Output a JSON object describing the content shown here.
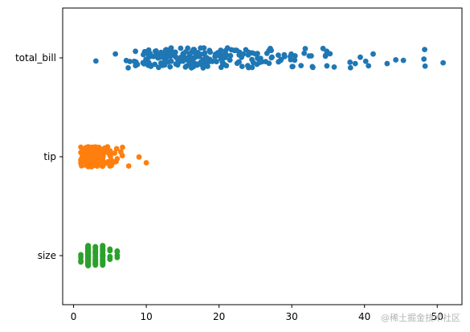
{
  "chart_data": {
    "type": "scatter",
    "kind": "strip",
    "orientation": "horizontal",
    "title": "",
    "xlabel": "",
    "ylabel": "",
    "xlim": [
      -1.5,
      53.4
    ],
    "x_ticks": [
      0,
      10,
      20,
      30,
      40,
      50
    ],
    "grid": false,
    "legend": "none",
    "categories": [
      "total_bill",
      "tip",
      "size"
    ],
    "series": [
      {
        "category": "total_bill",
        "color": "#1f77b4",
        "values": [
          3.07,
          5.75,
          7.25,
          7.51,
          7.74,
          8.35,
          8.51,
          8.52,
          8.58,
          8.77,
          9.55,
          9.6,
          9.68,
          9.78,
          9.94,
          10.07,
          10.07,
          10.09,
          10.27,
          10.29,
          10.33,
          10.33,
          10.34,
          10.34,
          10.51,
          10.59,
          10.63,
          10.65,
          10.77,
          11.02,
          11.17,
          11.24,
          11.35,
          11.38,
          11.59,
          11.61,
          11.69,
          11.87,
          12.02,
          12.03,
          12.16,
          12.26,
          12.43,
          12.46,
          12.48,
          12.54,
          12.6,
          12.66,
          12.69,
          12.74,
          12.76,
          12.9,
          13.0,
          13.0,
          13.03,
          13.13,
          13.16,
          13.27,
          13.28,
          13.37,
          13.39,
          13.42,
          13.42,
          13.42,
          13.51,
          13.81,
          13.94,
          14.0,
          14.07,
          14.15,
          14.26,
          14.31,
          14.48,
          14.52,
          14.73,
          14.78,
          14.83,
          15.01,
          15.04,
          15.06,
          15.36,
          15.38,
          15.42,
          15.48,
          15.53,
          15.69,
          15.69,
          15.77,
          15.81,
          15.95,
          15.98,
          15.98,
          16.0,
          16.04,
          16.21,
          16.27,
          16.29,
          16.31,
          16.32,
          16.4,
          16.43,
          16.45,
          16.47,
          16.49,
          16.58,
          16.66,
          16.82,
          16.93,
          16.97,
          16.99,
          17.07,
          17.26,
          17.29,
          17.31,
          17.46,
          17.47,
          17.51,
          17.59,
          17.78,
          17.81,
          17.82,
          17.89,
          17.92,
          17.92,
          18.04,
          18.15,
          18.24,
          18.26,
          18.28,
          18.29,
          18.35,
          18.43,
          18.64,
          18.69,
          18.71,
          18.78,
          19.08,
          19.44,
          19.49,
          19.65,
          19.77,
          19.81,
          19.82,
          20.08,
          20.23,
          20.27,
          20.29,
          20.45,
          20.49,
          20.53,
          20.65,
          20.69,
          20.76,
          20.9,
          20.92,
          21.01,
          21.01,
          21.16,
          21.5,
          21.58,
          21.7,
          22.12,
          22.23,
          22.42,
          22.49,
          22.67,
          22.75,
          22.76,
          22.82,
          23.1,
          23.17,
          23.33,
          23.68,
          23.95,
          24.01,
          24.06,
          24.08,
          24.27,
          24.52,
          24.55,
          24.59,
          24.71,
          25.0,
          25.21,
          25.28,
          25.29,
          25.56,
          25.71,
          25.89,
          26.41,
          26.59,
          26.86,
          26.88,
          27.05,
          27.18,
          27.2,
          27.28,
          28.15,
          28.17,
          28.44,
          28.55,
          28.97,
          29.03,
          29.8,
          29.85,
          29.93,
          30.06,
          30.14,
          30.4,
          30.46,
          31.27,
          31.71,
          31.85,
          32.4,
          32.68,
          32.83,
          32.9,
          34.3,
          34.63,
          34.65,
          34.81,
          34.83,
          35.26,
          35.83,
          38.01,
          38.07,
          38.73,
          39.42,
          40.17,
          40.55,
          41.19,
          43.11,
          44.3,
          45.35,
          48.17,
          48.27,
          48.33,
          50.81
        ]
      },
      {
        "category": "tip",
        "color": "#ff7f0e",
        "values": [
          1.0,
          1.0,
          1.0,
          1.0,
          1.01,
          1.1,
          1.17,
          1.25,
          1.25,
          1.25,
          1.32,
          1.36,
          1.44,
          1.45,
          1.47,
          1.48,
          1.5,
          1.5,
          1.5,
          1.5,
          1.5,
          1.5,
          1.5,
          1.5,
          1.56,
          1.57,
          1.58,
          1.61,
          1.63,
          1.64,
          1.66,
          1.66,
          1.67,
          1.68,
          1.71,
          1.73,
          1.75,
          1.76,
          1.8,
          1.83,
          1.92,
          1.96,
          1.97,
          1.98,
          1.99,
          2.0,
          2.0,
          2.0,
          2.0,
          2.0,
          2.0,
          2.0,
          2.0,
          2.0,
          2.0,
          2.0,
          2.0,
          2.0,
          2.0,
          2.0,
          2.0,
          2.0,
          2.0,
          2.0,
          2.0,
          2.0,
          2.0,
          2.0,
          2.0,
          2.0,
          2.0,
          2.0,
          2.0,
          2.0,
          2.0,
          2.0,
          2.0,
          2.0,
          2.0,
          2.0,
          2.0,
          2.01,
          2.02,
          2.03,
          2.05,
          2.09,
          2.1,
          2.12,
          2.18,
          2.2,
          2.2,
          2.23,
          2.23,
          2.24,
          2.24,
          2.3,
          2.31,
          2.34,
          2.45,
          2.47,
          2.5,
          2.5,
          2.5,
          2.5,
          2.5,
          2.5,
          2.5,
          2.52,
          2.54,
          2.55,
          2.56,
          2.6,
          2.6,
          2.61,
          2.64,
          2.71,
          2.72,
          2.74,
          2.75,
          2.83,
          2.88,
          2.92,
          3.0,
          3.0,
          3.0,
          3.0,
          3.0,
          3.0,
          3.0,
          3.0,
          3.0,
          3.0,
          3.0,
          3.0,
          3.0,
          3.0,
          3.0,
          3.0,
          3.0,
          3.0,
          3.0,
          3.0,
          3.0,
          3.0,
          3.0,
          3.0,
          3.0,
          3.0,
          3.0,
          3.0,
          3.0,
          3.0,
          3.0,
          3.0,
          3.0,
          3.0,
          3.02,
          3.06,
          3.07,
          3.08,
          3.09,
          3.11,
          3.12,
          3.14,
          3.15,
          3.16,
          3.18,
          3.18,
          3.21,
          3.23,
          3.25,
          3.27,
          3.31,
          3.35,
          3.39,
          3.39,
          3.4,
          3.41,
          3.48,
          3.48,
          3.5,
          3.5,
          3.5,
          3.5,
          3.5,
          3.5,
          3.5,
          3.51,
          3.55,
          3.6,
          3.61,
          3.68,
          3.71,
          3.76,
          3.92,
          4.0,
          4.0,
          4.0,
          4.0,
          4.0,
          4.0,
          4.0,
          4.0,
          4.0,
          4.0,
          4.0,
          4.0,
          4.06,
          4.08,
          4.19,
          4.2,
          4.29,
          4.3,
          4.34,
          4.5,
          4.67,
          4.71,
          4.73,
          5.0,
          5.0,
          5.0,
          5.0,
          5.0,
          5.0,
          5.0,
          5.0,
          5.0,
          5.07,
          5.14,
          5.16,
          5.17,
          5.2,
          5.6,
          5.65,
          5.85,
          5.92,
          6.0,
          6.5,
          6.7,
          6.73,
          7.58,
          9.0,
          10.0
        ]
      },
      {
        "category": "size",
        "color": "#2ca02c",
        "values": [
          1,
          1,
          1,
          1,
          2,
          2,
          2,
          2,
          2,
          2,
          2,
          2,
          2,
          2,
          2,
          2,
          2,
          2,
          2,
          2,
          2,
          2,
          2,
          2,
          2,
          2,
          2,
          2,
          2,
          2,
          2,
          2,
          2,
          2,
          2,
          2,
          2,
          2,
          2,
          2,
          2,
          2,
          2,
          2,
          2,
          2,
          2,
          2,
          2,
          2,
          2,
          2,
          2,
          2,
          2,
          2,
          2,
          2,
          2,
          2,
          2,
          2,
          2,
          2,
          2,
          2,
          2,
          2,
          2,
          2,
          2,
          2,
          2,
          2,
          2,
          2,
          2,
          2,
          2,
          2,
          2,
          2,
          2,
          2,
          2,
          2,
          2,
          2,
          2,
          2,
          2,
          2,
          2,
          2,
          2,
          2,
          2,
          2,
          2,
          2,
          2,
          2,
          2,
          2,
          2,
          2,
          2,
          2,
          2,
          2,
          2,
          2,
          2,
          2,
          2,
          2,
          2,
          2,
          2,
          2,
          2,
          2,
          2,
          2,
          2,
          2,
          2,
          2,
          2,
          2,
          2,
          2,
          2,
          2,
          2,
          2,
          2,
          2,
          2,
          2,
          2,
          2,
          2,
          2,
          2,
          2,
          2,
          2,
          2,
          2,
          2,
          2,
          2,
          2,
          2,
          2,
          2,
          2,
          2,
          2,
          3,
          3,
          3,
          3,
          3,
          3,
          3,
          3,
          3,
          3,
          3,
          3,
          3,
          3,
          3,
          3,
          3,
          3,
          3,
          3,
          3,
          3,
          3,
          3,
          3,
          3,
          3,
          3,
          3,
          3,
          3,
          3,
          3,
          3,
          3,
          3,
          3,
          3,
          4,
          4,
          4,
          4,
          4,
          4,
          4,
          4,
          4,
          4,
          4,
          4,
          4,
          4,
          4,
          4,
          4,
          4,
          4,
          4,
          4,
          4,
          4,
          4,
          4,
          4,
          4,
          4,
          4,
          4,
          4,
          4,
          4,
          4,
          4,
          4,
          4,
          4,
          4,
          4,
          4,
          4,
          5,
          5,
          5,
          5,
          5,
          6,
          6,
          6,
          6
        ]
      }
    ]
  },
  "watermark": {
    "text": "@稀土掘金技术社区"
  }
}
